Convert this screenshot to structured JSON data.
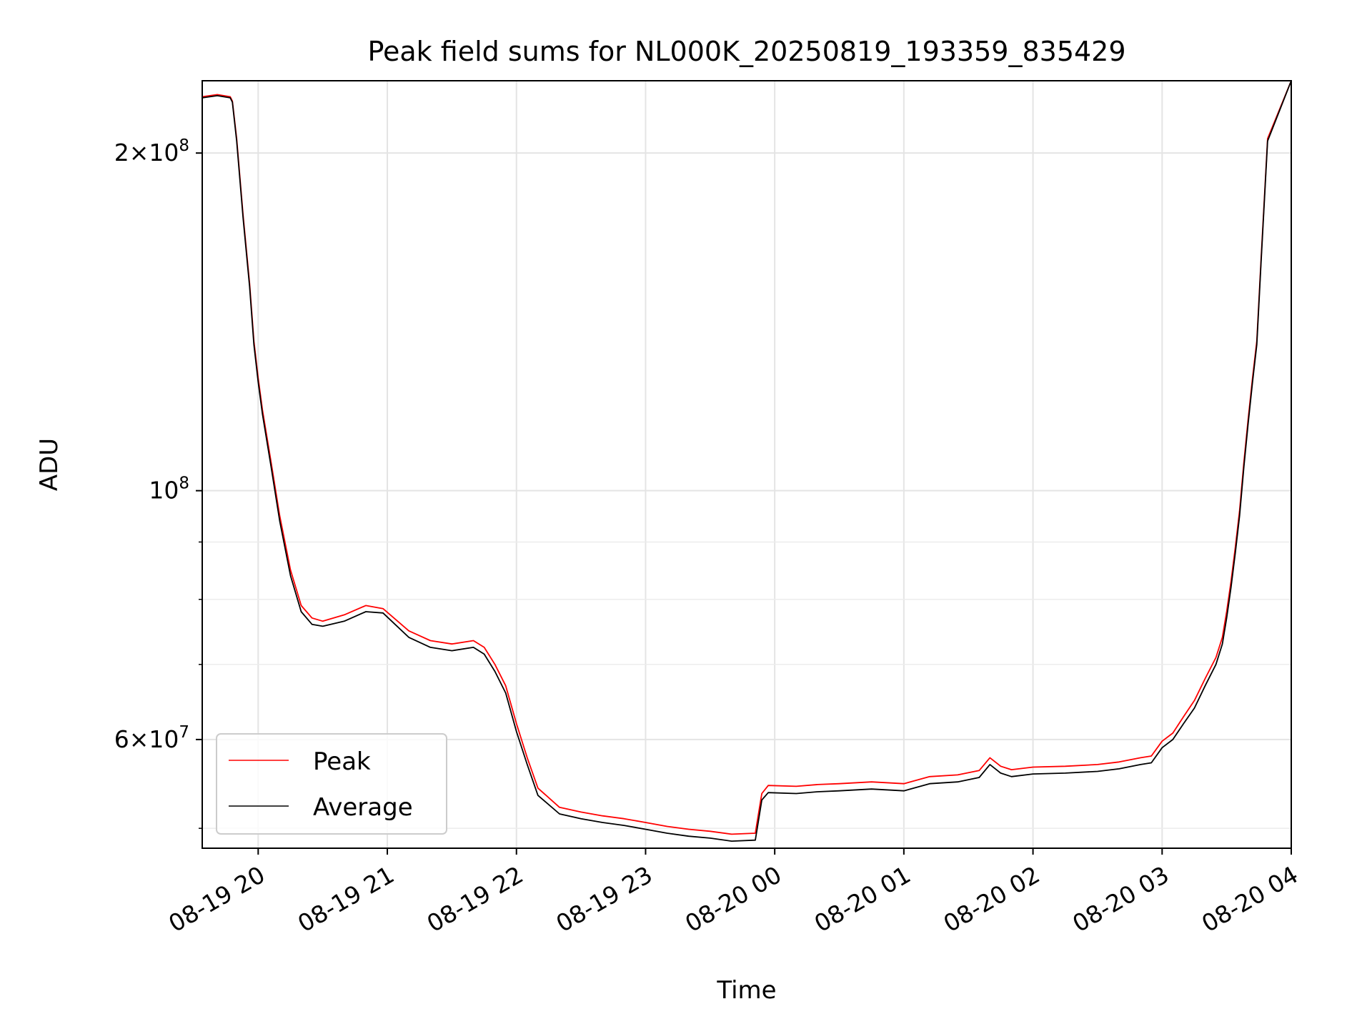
{
  "chart_data": {
    "type": "line",
    "title": "Peak field sums for NL000K_20250819_193359_835429",
    "xlabel": "Time",
    "ylabel": "ADU",
    "y_scale": "log",
    "ylim": [
      48000000,
      232000000
    ],
    "xlim": [
      "08-19 19:34",
      "08-20 04:00"
    ],
    "grid": true,
    "legend_position": "lower-left",
    "x_ticks": [
      "08-19 20",
      "08-19 21",
      "08-19 22",
      "08-19 23",
      "08-20 00",
      "08-20 01",
      "08-20 02",
      "08-20 03",
      "08-20 04"
    ],
    "x_tick_times": [
      "08-19 20:00",
      "08-19 21:00",
      "08-19 22:00",
      "08-19 23:00",
      "08-20 00:00",
      "08-20 01:00",
      "08-20 02:00",
      "08-20 03:00",
      "08-20 04:00"
    ],
    "y_ticks": [
      {
        "value": 200000000,
        "mant": "2",
        "exp": "8"
      },
      {
        "value": 100000000,
        "mant": "",
        "exp": "8"
      },
      {
        "value": 60000000,
        "mant": "6",
        "exp": "7"
      }
    ],
    "y_minor_ticks": [
      50000000,
      70000000,
      80000000,
      90000000
    ],
    "series": [
      {
        "name": "Average",
        "color": "#000000",
        "x": [
          "08-19 19:34",
          "08-19 19:41",
          "08-19 19:47",
          "08-19 19:48",
          "08-19 19:50",
          "08-19 19:53",
          "08-19 19:56",
          "08-19 19:58",
          "08-19 20:00",
          "08-19 20:02",
          "08-19 20:06",
          "08-19 20:10",
          "08-19 20:15",
          "08-19 20:20",
          "08-19 20:25",
          "08-19 20:30",
          "08-19 20:40",
          "08-19 20:50",
          "08-19 20:58",
          "08-19 21:10",
          "08-19 21:20",
          "08-19 21:30",
          "08-19 21:40",
          "08-19 21:45",
          "08-19 21:50",
          "08-19 21:55",
          "08-19 22:00",
          "08-19 22:05",
          "08-19 22:10",
          "08-19 22:20",
          "08-19 22:30",
          "08-19 22:40",
          "08-19 22:50",
          "08-19 23:00",
          "08-19 23:10",
          "08-19 23:20",
          "08-19 23:30",
          "08-19 23:40",
          "08-19 23:51",
          "08-19 23:54",
          "08-19 23:57",
          "08-20 00:10",
          "08-20 00:20",
          "08-20 00:30",
          "08-20 00:45",
          "08-20 01:00",
          "08-20 01:12",
          "08-20 01:25",
          "08-20 01:35",
          "08-20 01:40",
          "08-20 01:45",
          "08-20 01:50",
          "08-20 02:00",
          "08-20 02:15",
          "08-20 02:30",
          "08-20 02:40",
          "08-20 02:50",
          "08-20 02:55",
          "08-20 03:00",
          "08-20 03:05",
          "08-20 03:10",
          "08-20 03:15",
          "08-20 03:20",
          "08-20 03:25",
          "08-20 03:28",
          "08-20 03:30",
          "08-20 03:32",
          "08-20 03:34",
          "08-20 03:36",
          "08-20 03:38",
          "08-20 03:40",
          "08-20 03:42",
          "08-20 03:44",
          "08-20 03:46",
          "08-20 03:49",
          "08-20 04:00"
        ],
        "y": [
          224000000,
          225000000,
          224000000,
          222000000,
          205000000,
          175000000,
          152000000,
          135000000,
          125000000,
          117000000,
          105000000,
          94000000,
          84000000,
          78000000,
          76000000,
          75700000,
          76500000,
          78000000,
          77800000,
          74000000,
          72500000,
          72000000,
          72500000,
          71500000,
          69000000,
          66000000,
          61000000,
          57000000,
          53500000,
          51500000,
          51000000,
          50600000,
          50300000,
          49900000,
          49500000,
          49200000,
          49000000,
          48700000,
          48800000,
          53000000,
          53800000,
          53700000,
          53900000,
          54000000,
          54200000,
          54000000,
          54800000,
          55000000,
          55500000,
          57000000,
          56000000,
          55600000,
          55900000,
          56000000,
          56200000,
          56500000,
          57000000,
          57200000,
          59000000,
          60000000,
          62000000,
          64000000,
          67000000,
          70000000,
          73000000,
          77000000,
          82000000,
          88000000,
          95000000,
          105000000,
          115000000,
          125000000,
          135000000,
          160000000,
          205000000,
          232000000
        ]
      },
      {
        "name": "Peak",
        "color": "#ff0000",
        "x": [
          "08-19 19:34",
          "08-19 19:41",
          "08-19 19:47",
          "08-19 19:48",
          "08-19 19:50",
          "08-19 19:53",
          "08-19 19:56",
          "08-19 19:58",
          "08-19 20:00",
          "08-19 20:02",
          "08-19 20:06",
          "08-19 20:10",
          "08-19 20:15",
          "08-19 20:20",
          "08-19 20:25",
          "08-19 20:30",
          "08-19 20:40",
          "08-19 20:50",
          "08-19 20:58",
          "08-19 21:10",
          "08-19 21:20",
          "08-19 21:30",
          "08-19 21:40",
          "08-19 21:45",
          "08-19 21:50",
          "08-19 21:55",
          "08-19 22:00",
          "08-19 22:05",
          "08-19 22:10",
          "08-19 22:20",
          "08-19 22:30",
          "08-19 22:40",
          "08-19 22:50",
          "08-19 23:00",
          "08-19 23:10",
          "08-19 23:20",
          "08-19 23:30",
          "08-19 23:40",
          "08-19 23:51",
          "08-19 23:54",
          "08-19 23:57",
          "08-20 00:10",
          "08-20 00:20",
          "08-20 00:30",
          "08-20 00:45",
          "08-20 01:00",
          "08-20 01:12",
          "08-20 01:25",
          "08-20 01:35",
          "08-20 01:40",
          "08-20 01:45",
          "08-20 01:50",
          "08-20 02:00",
          "08-20 02:15",
          "08-20 02:30",
          "08-20 02:40",
          "08-20 02:50",
          "08-20 02:55",
          "08-20 03:00",
          "08-20 03:05",
          "08-20 03:10",
          "08-20 03:15",
          "08-20 03:20",
          "08-20 03:25",
          "08-20 03:28",
          "08-20 03:30",
          "08-20 03:32",
          "08-20 03:34",
          "08-20 03:36",
          "08-20 03:38",
          "08-20 03:40",
          "08-20 03:42",
          "08-20 03:44",
          "08-20 03:46",
          "08-20 03:49",
          "08-20 04:00"
        ],
        "y": [
          224500000,
          225500000,
          224500000,
          222500000,
          206000000,
          176000000,
          153000000,
          136000000,
          126000000,
          118000000,
          106000000,
          95000000,
          85000000,
          79000000,
          77000000,
          76500000,
          77500000,
          79000000,
          78500000,
          75000000,
          73500000,
          73000000,
          73500000,
          72500000,
          70000000,
          67000000,
          62000000,
          57800000,
          54300000,
          52200000,
          51700000,
          51300000,
          51000000,
          50600000,
          50200000,
          49900000,
          49700000,
          49400000,
          49500000,
          53700000,
          54600000,
          54500000,
          54700000,
          54800000,
          55000000,
          54800000,
          55600000,
          55800000,
          56300000,
          57800000,
          56800000,
          56400000,
          56700000,
          56800000,
          57000000,
          57300000,
          57800000,
          58000000,
          59800000,
          60800000,
          62900000,
          65000000,
          68000000,
          71000000,
          74000000,
          78000000,
          83000000,
          89000000,
          96000000,
          106000000,
          116000000,
          126000000,
          136000000,
          161000000,
          206000000,
          232000000
        ]
      }
    ]
  }
}
